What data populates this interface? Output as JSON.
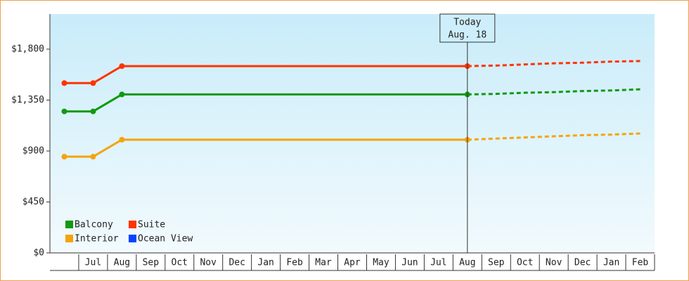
{
  "chart_data": {
    "type": "line",
    "categories": [
      null,
      "Jul",
      "Aug",
      "Sep",
      "Oct",
      "Nov",
      "Dec",
      "Jan",
      "Feb",
      "Mar",
      "Apr",
      "May",
      "Jun",
      "Jul",
      "Aug",
      "Sep",
      "Oct",
      "Nov",
      "Dec",
      "Jan",
      "Feb"
    ],
    "ylim": [
      0,
      2110
    ],
    "yticks": [
      {
        "value": 0,
        "label": "$0"
      },
      {
        "value": 450,
        "label": "$450"
      },
      {
        "value": 900,
        "label": "$900"
      },
      {
        "value": 1350,
        "label": "$1,350"
      },
      {
        "value": 1800,
        "label": "$1,800"
      }
    ],
    "grid": false,
    "legend": "bottom-left",
    "annotation": [
      "Today",
      "Aug. 18"
    ],
    "series": [
      {
        "name": "Balcony",
        "color": "#119911",
        "values": [
          1250,
          1250,
          1400,
          1400,
          1400,
          1400,
          1400,
          1400,
          1400,
          1400,
          1400,
          1400,
          1400,
          1400,
          1400,
          null,
          null,
          null,
          null,
          null,
          null
        ],
        "forecast": [
          null,
          null,
          null,
          null,
          null,
          null,
          null,
          null,
          null,
          null,
          null,
          null,
          null,
          null,
          1400,
          1405,
          1415,
          1420,
          1430,
          1435,
          1445
        ]
      },
      {
        "name": "Suite",
        "color": "#ff3300",
        "values": [
          1500,
          1500,
          1650,
          1650,
          1650,
          1650,
          1650,
          1650,
          1650,
          1650,
          1650,
          1650,
          1650,
          1650,
          1650,
          null,
          null,
          null,
          null,
          null,
          null
        ],
        "forecast": [
          null,
          null,
          null,
          null,
          null,
          null,
          null,
          null,
          null,
          null,
          null,
          null,
          null,
          null,
          1650,
          1655,
          1665,
          1675,
          1680,
          1690,
          1695
        ]
      },
      {
        "name": "Interior",
        "color": "#f5a30a",
        "values": [
          850,
          850,
          1000,
          1000,
          1000,
          1000,
          1000,
          1000,
          1000,
          1000,
          1000,
          1000,
          1000,
          1000,
          1000,
          null,
          null,
          null,
          null,
          null,
          null
        ],
        "forecast": [
          null,
          null,
          null,
          null,
          null,
          null,
          null,
          null,
          null,
          null,
          null,
          null,
          null,
          null,
          1000,
          1010,
          1020,
          1030,
          1040,
          1045,
          1055
        ]
      },
      {
        "name": "Ocean View",
        "color": "#0044ff",
        "values": [
          null,
          null,
          null,
          null,
          null,
          null,
          null,
          null,
          null,
          null,
          null,
          null,
          null,
          null,
          null,
          null,
          null,
          null,
          null,
          null,
          null
        ]
      }
    ]
  }
}
